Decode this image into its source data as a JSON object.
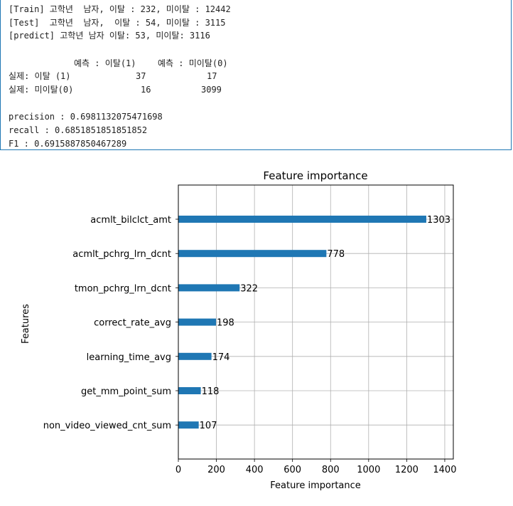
{
  "output": {
    "train_line": "[Train] 고학년  남자, 이탈 : 232, 미이탈 : 12442",
    "test_line": "[Test]  고학년  남자,  이탈 : 54, 미이탈 : 3115",
    "predict_line": "[predict] 고학년 남자 이탈: 53, 미이탈: 3116",
    "matrix_header_1": "예측 : 이탈(1)",
    "matrix_header_2": "예측 : 미이탈(0)",
    "matrix_rows": [
      {
        "label": "실제: 이탈 (1)",
        "v1": "37",
        "v2": "17"
      },
      {
        "label": "실제: 미이탈(0)",
        "v1": "16",
        "v2": "3099"
      }
    ],
    "precision_line": "precision : 0.6981132075471698",
    "recall_line": "recall : 0.6851851851851852",
    "f1_line": "F1 : 0.6915887850467289"
  },
  "chart_data": {
    "type": "bar",
    "orientation": "horizontal",
    "title": "Feature importance",
    "xlabel": "Feature importance",
    "ylabel": "Features",
    "categories": [
      "acmlt_bilclct_amt",
      "acmlt_pchrg_lrn_dcnt",
      "tmon_pchrg_lrn_dcnt",
      "correct_rate_avg",
      "learning_time_avg",
      "get_mm_point_sum",
      "non_video_viewed_cnt_sum"
    ],
    "values": [
      1303,
      778,
      322,
      198,
      174,
      118,
      107
    ],
    "data_labels": [
      "1303",
      "778",
      "322",
      "198",
      "174",
      "118",
      "107"
    ],
    "xlim": [
      0,
      1445
    ],
    "xticks": [
      0,
      200,
      400,
      600,
      800,
      1000,
      1200,
      1400
    ],
    "xtick_labels": [
      "0",
      "200",
      "400",
      "600",
      "800",
      "1000",
      "1200",
      "1400"
    ],
    "grid": true,
    "bar_color": "#1f77b4"
  }
}
